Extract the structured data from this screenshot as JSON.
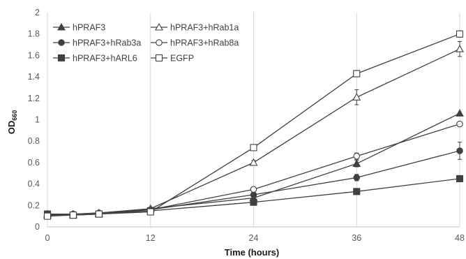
{
  "chart_data": {
    "type": "line",
    "xlabel": "Time (hours)",
    "ylabel": "OD",
    "ylabel_subscript": "660",
    "x_ticks": [
      0,
      12,
      24,
      36,
      48
    ],
    "y_ticks": [
      "0",
      "0.2",
      "0.4",
      "0.6",
      "0.8",
      "1",
      "1.2",
      "1.4",
      "1.6",
      "1.8",
      "2"
    ],
    "xlim": [
      0,
      48
    ],
    "ylim": [
      0,
      2
    ],
    "grid": "vertical",
    "legend_position": "top-left",
    "line_color": "#404040",
    "series": [
      {
        "name": "hPRAF3",
        "marker": "triangle-filled",
        "points": [
          [
            0,
            0.12
          ],
          [
            3,
            0.12
          ],
          [
            6,
            0.13
          ],
          [
            12,
            0.17
          ],
          [
            24,
            0.27
          ],
          [
            36,
            0.59
          ],
          [
            48,
            1.06
          ]
        ],
        "err": [
          0.01,
          0.01,
          0.01,
          0.01,
          0.01,
          0.03,
          0.01
        ]
      },
      {
        "name": "hPRAF3+hRab1a",
        "marker": "triangle-open",
        "points": [
          [
            0,
            0.11
          ],
          [
            3,
            0.11
          ],
          [
            6,
            0.12
          ],
          [
            12,
            0.17
          ],
          [
            24,
            0.6
          ],
          [
            36,
            1.21
          ],
          [
            48,
            1.66
          ]
        ],
        "err": [
          0.01,
          0.01,
          0.01,
          0.01,
          0.02,
          0.07,
          0.07
        ]
      },
      {
        "name": "hPRAF3+hRab3a",
        "marker": "circle-filled",
        "points": [
          [
            0,
            0.12
          ],
          [
            3,
            0.12
          ],
          [
            6,
            0.13
          ],
          [
            12,
            0.16
          ],
          [
            24,
            0.3
          ],
          [
            36,
            0.46
          ],
          [
            48,
            0.71
          ]
        ],
        "err": [
          0.01,
          0.01,
          0.01,
          0.01,
          0.01,
          0.03,
          0.08
        ]
      },
      {
        "name": "hPRAF3+hRab8a",
        "marker": "circle-open",
        "points": [
          [
            0,
            0.11
          ],
          [
            3,
            0.11
          ],
          [
            6,
            0.12
          ],
          [
            12,
            0.16
          ],
          [
            24,
            0.35
          ],
          [
            36,
            0.66
          ],
          [
            48,
            0.96
          ]
        ],
        "err": [
          0.01,
          0.01,
          0.01,
          0.01,
          0.01,
          0.03,
          0.01
        ]
      },
      {
        "name": "hPRAF3+hARL6",
        "marker": "square-filled",
        "points": [
          [
            0,
            0.12
          ],
          [
            3,
            0.11
          ],
          [
            6,
            0.12
          ],
          [
            12,
            0.15
          ],
          [
            24,
            0.23
          ],
          [
            36,
            0.33
          ],
          [
            48,
            0.45
          ]
        ],
        "err": [
          0.01,
          0.01,
          0.01,
          0.01,
          0.01,
          0.01,
          0.01
        ]
      },
      {
        "name": "EGFP",
        "marker": "square-open",
        "points": [
          [
            0,
            0.1
          ],
          [
            3,
            0.11
          ],
          [
            6,
            0.12
          ],
          [
            12,
            0.14
          ],
          [
            24,
            0.74
          ],
          [
            36,
            1.43
          ],
          [
            48,
            1.8
          ]
        ],
        "err": [
          0.01,
          0.01,
          0.01,
          0.01,
          0.02,
          0.03,
          0.03
        ]
      }
    ]
  }
}
